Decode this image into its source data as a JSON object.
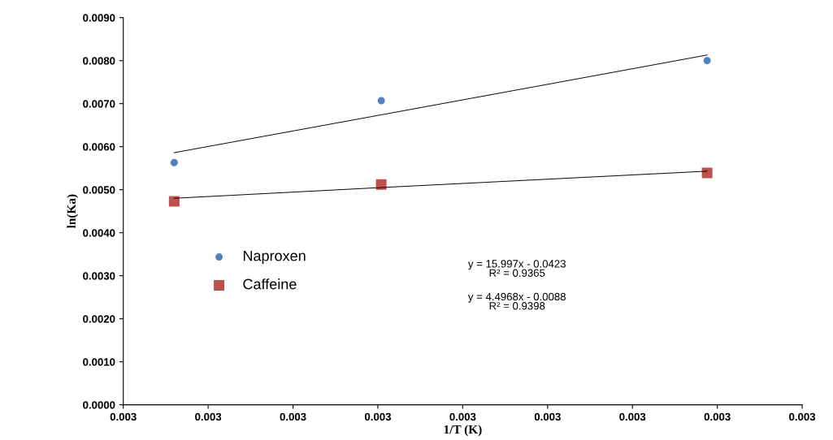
{
  "chart_data": {
    "type": "scatter",
    "xlabel": "1/T (K)",
    "ylabel": "ln(Ka)",
    "xlim": [
      0.003,
      0.0032
    ],
    "xticks": [
      {
        "value": 0.003,
        "label": "0.003"
      },
      {
        "value": 0.003025,
        "label": "0.003"
      },
      {
        "value": 0.00305,
        "label": "0.003"
      },
      {
        "value": 0.003075,
        "label": "0.003"
      },
      {
        "value": 0.0031,
        "label": "0.003"
      },
      {
        "value": 0.003125,
        "label": "0.003"
      },
      {
        "value": 0.00315,
        "label": "0.003"
      },
      {
        "value": 0.003175,
        "label": "0.003"
      },
      {
        "value": 0.0032,
        "label": "0.003"
      }
    ],
    "ylim": [
      0,
      0.009
    ],
    "yticks": [
      {
        "value": 0,
        "label": "0.0000"
      },
      {
        "value": 0.001,
        "label": "0.0010"
      },
      {
        "value": 0.002,
        "label": "0.0020"
      },
      {
        "value": 0.003,
        "label": "0.0030"
      },
      {
        "value": 0.004,
        "label": "0.0040"
      },
      {
        "value": 0.005,
        "label": "0.0050"
      },
      {
        "value": 0.006,
        "label": "0.0060"
      },
      {
        "value": 0.007,
        "label": "0.0070"
      },
      {
        "value": 0.008,
        "label": "0.0080"
      },
      {
        "value": 0.009,
        "label": "0.0090"
      }
    ],
    "x": [
      0.003015,
      0.003076,
      0.003172
    ],
    "grid": false,
    "legend": "left",
    "series": [
      {
        "name": "Naproxen",
        "color": "#4f81bd",
        "marker": "circle",
        "values": [
          0.00563,
          0.00707,
          0.008
        ]
      },
      {
        "name": "Caffeine",
        "color": "#c0504d",
        "marker": "square",
        "values": [
          0.00473,
          0.00512,
          0.00539
        ]
      },
      {
        "type": "line",
        "color": "#000000",
        "values": [
          0.00586,
          0.00674,
          0.00813
        ]
      },
      {
        "type": "line",
        "color": "#000000",
        "values": [
          0.0048,
          0.00505,
          0.00543
        ]
      }
    ],
    "annotations": [
      "y = 15.997x - 0.0423\nR² = 0.9365",
      "y = 4.4968x - 0.0088\nR² = 0.9398"
    ]
  }
}
